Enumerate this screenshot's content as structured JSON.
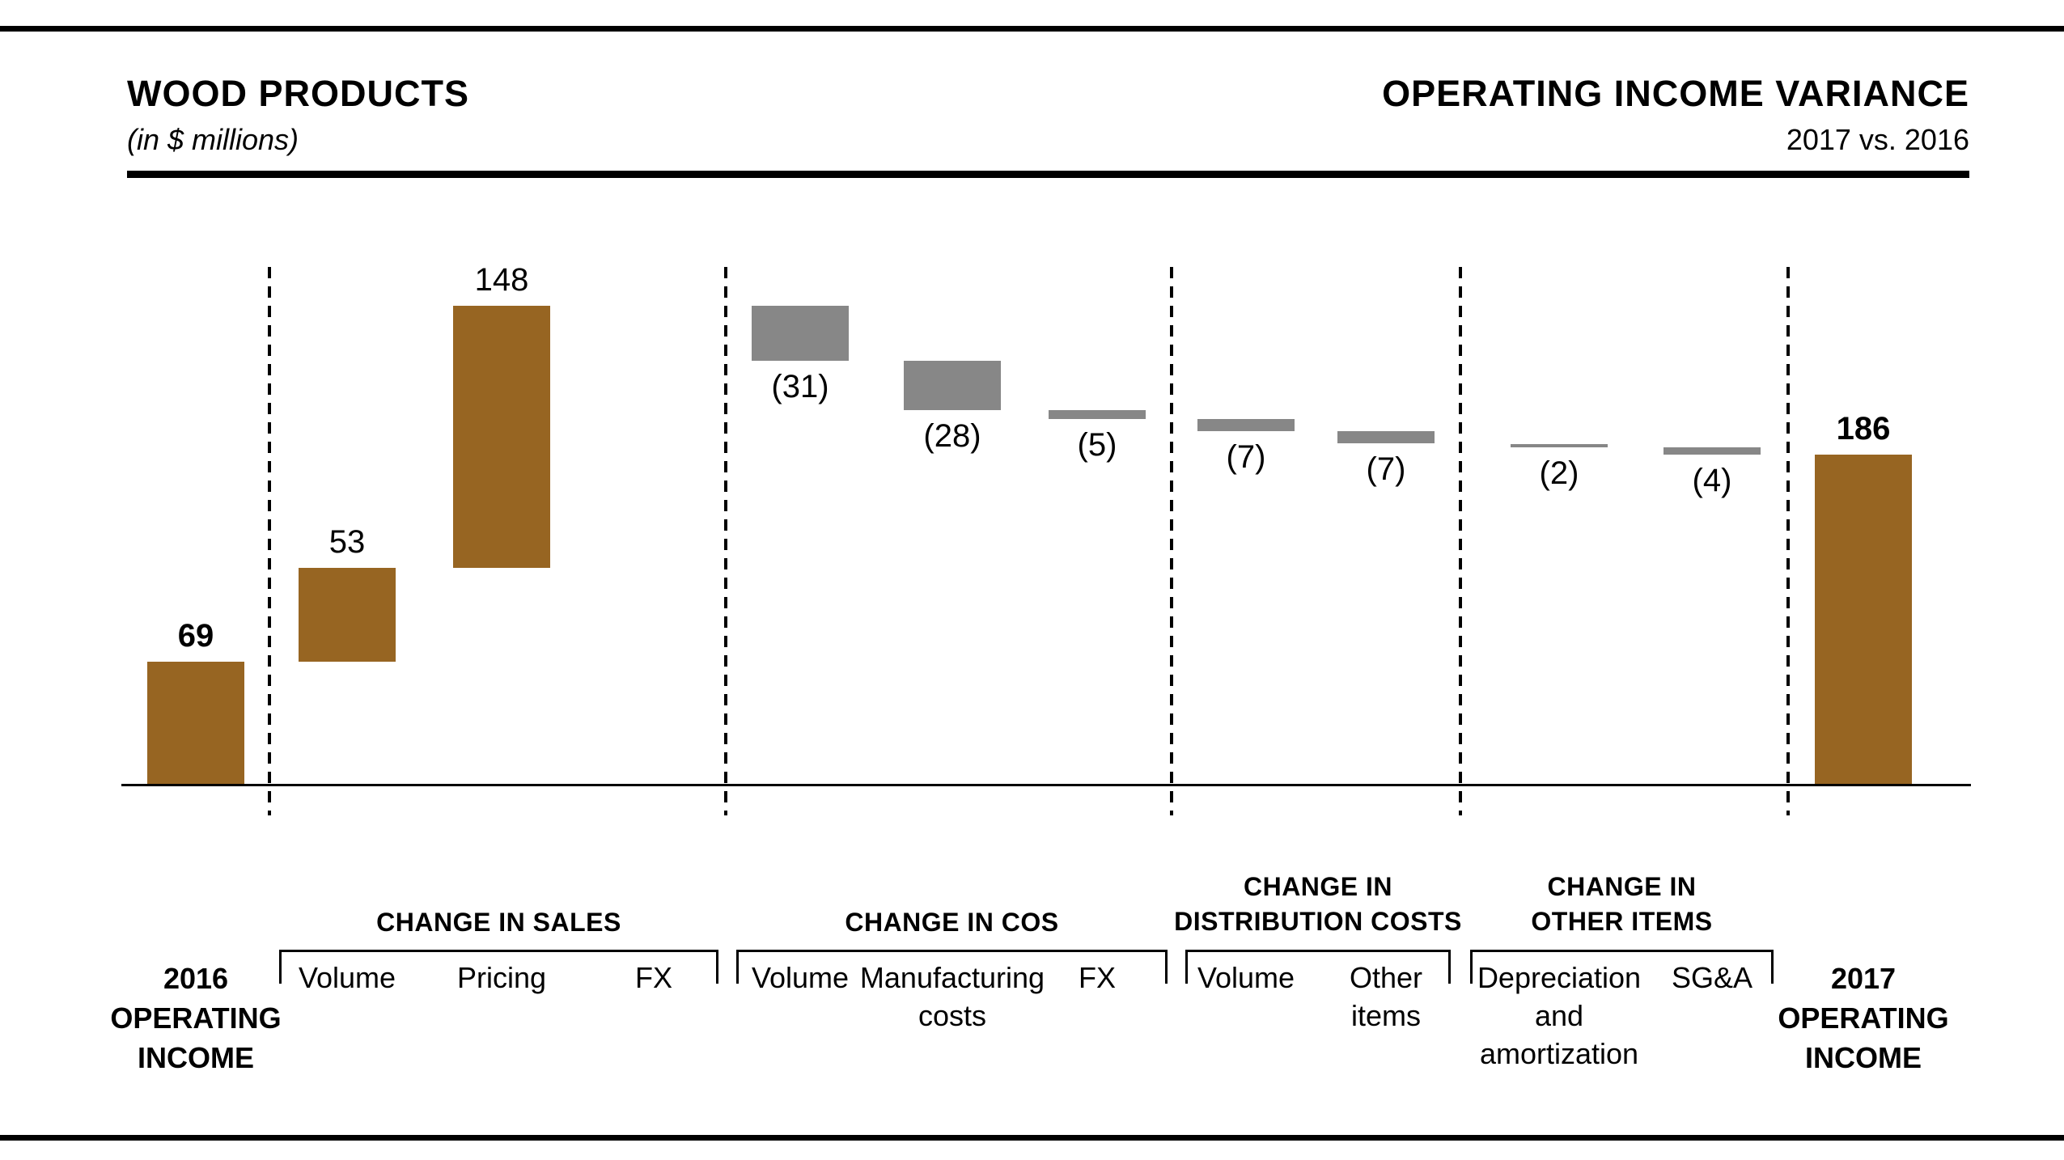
{
  "header": {
    "title": "WOOD PRODUCTS",
    "units": "(in $ millions)",
    "right_title": "OPERATING INCOME VARIANCE",
    "right_subtitle": "2017 vs. 2016"
  },
  "colors": {
    "positive_bar": "#976522",
    "negative_bar": "#878787",
    "text": "#000000",
    "rule": "#000000",
    "background": "#ffffff"
  },
  "chart_data": {
    "type": "waterfall",
    "title": "WOOD PRODUCTS",
    "units_note": "(in $ millions)",
    "right_title": "OPERATING INCOME VARIANCE",
    "subtitle": "2017 vs. 2016",
    "start_value": 69,
    "end_value": 186,
    "grid": "off",
    "legend": "none",
    "columns": [
      {
        "id": "2016-operating-income",
        "label": "2016\nOPERATING\nINCOME",
        "type": "total",
        "value": 69,
        "value_label": "69",
        "bold": true,
        "group": null
      },
      {
        "id": "sales-volume",
        "label": "Volume",
        "type": "delta",
        "value": 53,
        "value_label": "53",
        "bold": false,
        "group": 0
      },
      {
        "id": "sales-pricing",
        "label": "Pricing",
        "type": "delta",
        "value": 148,
        "value_label": "148",
        "bold": false,
        "group": 0
      },
      {
        "id": "sales-fx",
        "label": "FX",
        "type": "delta",
        "value": 0,
        "value_label": "",
        "bold": false,
        "group": 0
      },
      {
        "id": "cos-volume",
        "label": "Volume",
        "type": "delta",
        "value": -31,
        "value_label": "(31)",
        "bold": false,
        "group": 1
      },
      {
        "id": "cos-manufacturing-costs",
        "label": "Manufacturing\ncosts",
        "type": "delta",
        "value": -28,
        "value_label": "(28)",
        "bold": false,
        "group": 1
      },
      {
        "id": "cos-fx",
        "label": "FX",
        "type": "delta",
        "value": -5,
        "value_label": "(5)",
        "bold": false,
        "group": 1
      },
      {
        "id": "distribution-volume",
        "label": "Volume",
        "type": "delta",
        "value": -7,
        "value_label": "(7)",
        "bold": false,
        "group": 2
      },
      {
        "id": "distribution-other-items",
        "label": "Other\nitems",
        "type": "delta",
        "value": -7,
        "value_label": "(7)",
        "bold": false,
        "group": 2
      },
      {
        "id": "other-depreciation-and-amortization",
        "label": "Depreciation\nand\namortization",
        "type": "delta",
        "value": -2,
        "value_label": "(2)",
        "bold": false,
        "group": 3
      },
      {
        "id": "other-sga",
        "label": "SG&A",
        "type": "delta",
        "value": -4,
        "value_label": "(4)",
        "bold": false,
        "group": 3
      },
      {
        "id": "2017-operating-income",
        "label": "2017\nOPERATING\nINCOME",
        "type": "total",
        "value": 186,
        "value_label": "186",
        "bold": true,
        "group": null
      }
    ],
    "groups": [
      {
        "id": "change-in-sales",
        "label": "CHANGE IN SALES"
      },
      {
        "id": "change-in-cos",
        "label": "CHANGE IN COS"
      },
      {
        "id": "change-in-distribution-costs",
        "label": "CHANGE IN\nDISTRIBUTION COSTS"
      },
      {
        "id": "change-in-other-items",
        "label": "CHANGE IN\nOTHER ITEMS"
      }
    ]
  }
}
